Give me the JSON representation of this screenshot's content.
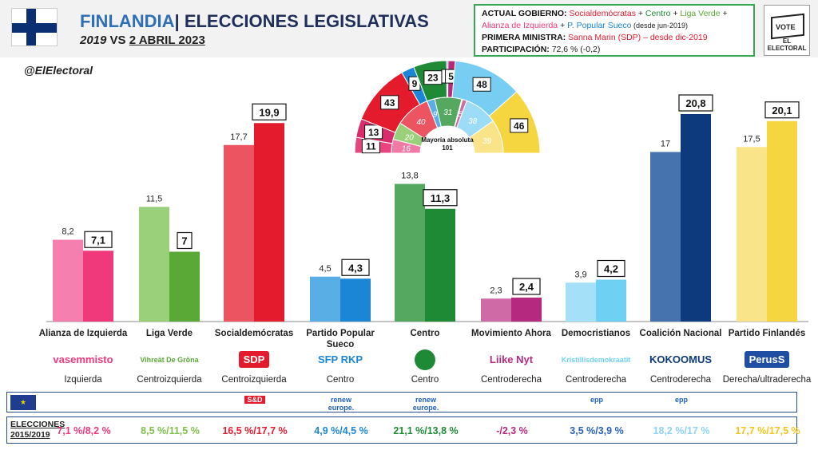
{
  "header": {
    "country": "FINLANDIA",
    "election_type": "| ELECCIONES LEGISLATIVAS",
    "year_prev": "2019",
    "vs": " VS ",
    "date": "2 ABRIL 2023",
    "handle": "@ElElectoral"
  },
  "government": {
    "gov_label": "ACTUAL GOBIERNO:",
    "gov_p1": "Socialdemócratas",
    "plus": " + ",
    "gov_p2": "Centro",
    "gov_p3": "Liga Verde",
    "gov_p4": "Alianza de Izquierda",
    "gov_p5": "P. Popular Sueco",
    "gov_since": " (desde jun-2019)",
    "pm_label": "PRIMERA MINISTRA:",
    "pm_value": " Sanna Marin (SDP) – desde dic-2019",
    "turnout_label": "PARTICIPACIÓN:",
    "turnout_value": " 72,6 % (-0,2)"
  },
  "logo_box": {
    "vote": "VOTE",
    "name": "EL ELECTORAL"
  },
  "colors": {
    "izquierda": "#f0397a",
    "izquierda_prev": "#f580b0",
    "verde": "#5aa835",
    "verde_prev": "#9bd07a",
    "sdp": "#e31b2d",
    "sdp_prev": "#ec5461",
    "rkp": "#1b86d6",
    "rkp_prev": "#5aaee6",
    "centro": "#1e8a36",
    "centro_prev": "#55a860",
    "ahora": "#b52a7e",
    "ahora_prev": "#cf6aa6",
    "krist": "#6ed0f2",
    "krist_prev": "#a4e0f7",
    "kok": "#0c3a7d",
    "kok_prev": "#4673ad",
    "ps": "#f6d640",
    "ps_prev": "#fae489"
  },
  "chart_data": {
    "type": "bar",
    "categories": [
      "Alianza de Izquierda",
      "Liga Verde",
      "Socialdemócratas",
      "Partido Popular Sueco",
      "Centro",
      "Movimiento Ahora",
      "Democristianos",
      "Coalición Nacional",
      "Partido Finlandés"
    ],
    "series": [
      {
        "name": "2019",
        "values": [
          8.2,
          11.5,
          17.7,
          4.5,
          13.8,
          2.3,
          3.9,
          17,
          17.5
        ],
        "labels": [
          "8,2",
          "11,5",
          "17,7",
          "4,5",
          "13,8",
          "2,3",
          "3,9",
          "17",
          "17,5"
        ]
      },
      {
        "name": "2023",
        "values": [
          7.1,
          7,
          19.9,
          4.3,
          11.3,
          2.4,
          4.2,
          20.8,
          20.1
        ],
        "labels": [
          "7,1",
          "7",
          "19,9",
          "4,3",
          "11,3",
          "2,4",
          "4,2",
          "20,8",
          "20,1"
        ]
      }
    ],
    "ylim": [
      0,
      21.5
    ],
    "parliament": {
      "title": "Mayoría absoluta",
      "majority": "101",
      "outer_2023": [
        {
          "party": "ahora",
          "seats": 11
        },
        {
          "party": "izquierda",
          "seats": 13
        },
        {
          "party": "sdp",
          "seats": 43
        },
        {
          "party": "rkp",
          "seats": 9
        },
        {
          "party": "centro",
          "seats": 23
        },
        {
          "party": "krist",
          "seats": 1
        },
        {
          "party": "ahora2",
          "seats": 5
        },
        {
          "party": "kok",
          "seats": 48
        },
        {
          "party": "ps",
          "seats": 46
        }
      ],
      "inner_2019": [
        {
          "party": "ahora",
          "seats": 16
        },
        {
          "party": "verde",
          "seats": 20
        },
        {
          "party": "sdp",
          "seats": 40
        },
        {
          "party": "rkp",
          "seats": 9
        },
        {
          "party": "centro",
          "seats": 31
        },
        {
          "party": "krist",
          "seats": 1
        },
        {
          "party": "ahora2",
          "seats": 5
        },
        {
          "party": "kok",
          "seats": 38
        },
        {
          "party": "ps",
          "seats": 39
        }
      ]
    }
  },
  "parties": [
    {
      "name": "Alianza de Izquierda",
      "logo": "vasemmisto",
      "ideology": "Izquierda",
      "prev": "7,1 %/8,2 %",
      "prev_color": "#f0397a"
    },
    {
      "name": "Liga Verde",
      "logo": "Vihreät De Gröna",
      "ideology": "Centroizquierda",
      "prev": "8,5 %/11,5 %",
      "prev_color": "#7dc04a"
    },
    {
      "name": "Socialdemócratas",
      "logo": "SDP",
      "ideology": "Centroizquierda",
      "prev": "16,5 %/17,7 %",
      "prev_color": "#e31b2d"
    },
    {
      "name": "Partido Popular Sueco",
      "logo": "SFP RKP",
      "ideology": "Centro",
      "prev": "4,9 %/4,5 %",
      "prev_color": "#1b86d6"
    },
    {
      "name": "Centro",
      "logo": "",
      "ideology": "Centro",
      "prev": "21,1 %/13,8 %",
      "prev_color": "#1e8a36"
    },
    {
      "name": "Movimiento Ahora",
      "logo": "Liike Nyt",
      "ideology": "Centroderecha",
      "prev": "-/2,3 %",
      "prev_color": "#b52a7e"
    },
    {
      "name": "Democristianos",
      "logo": "Kristillisdemokraatit",
      "ideology": "Centroderecha",
      "prev": "3,5 %/3,9 %",
      "prev_color": "#2a62b8"
    },
    {
      "name": "Coalición Nacional",
      "logo": "KOKOOMUS",
      "ideology": "Centroderecha",
      "prev": "18,2 %/17 %",
      "prev_color": "#8fd3f4"
    },
    {
      "name": "Partido Finlandés",
      "logo": "PerusS",
      "ideology": "Derecha/ultraderecha",
      "prev": "17,7 %/17,5 %",
      "prev_color": "#f3c61c"
    }
  ],
  "eu_groups": [
    "",
    "",
    "S&D",
    "renew europe.",
    "renew europe.",
    "",
    "epp",
    "epp",
    ""
  ],
  "prev_label": {
    "line1": "ELECCIONES",
    "line2": "2015/2019"
  }
}
